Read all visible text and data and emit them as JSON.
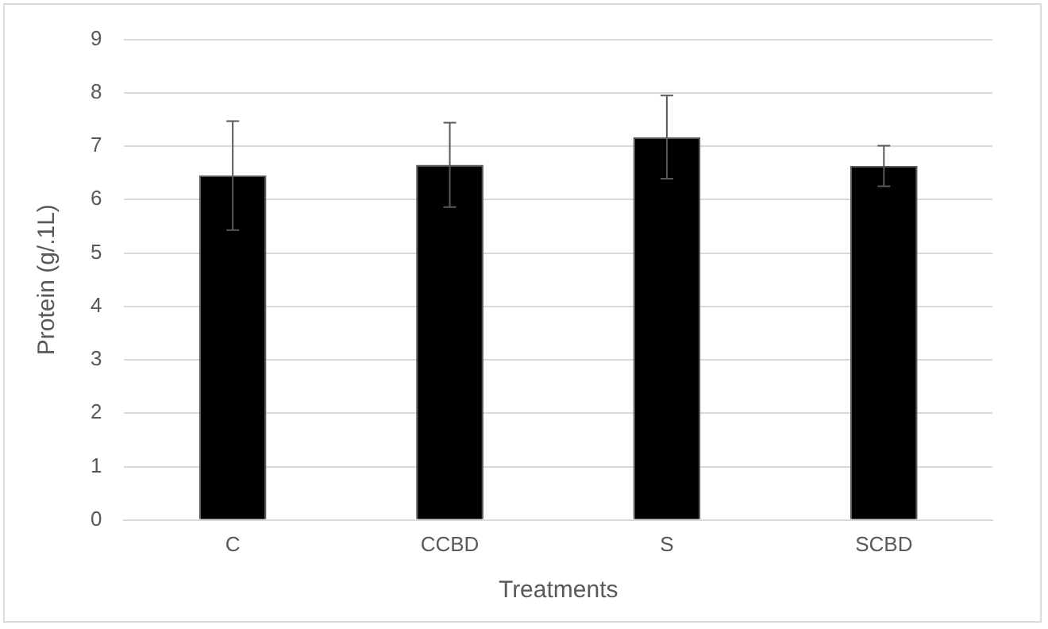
{
  "chart_data": {
    "type": "bar",
    "xlabel": "Treatments",
    "ylabel": "Protein (g/.1L)",
    "categories": [
      "C",
      "CCBD",
      "S",
      "SCBD"
    ],
    "values": [
      6.45,
      6.65,
      7.17,
      6.63
    ],
    "errors": [
      1.02,
      0.79,
      0.78,
      0.38
    ],
    "color": "#000000",
    "ylim": [
      0,
      9
    ],
    "yticks": [
      0,
      1,
      2,
      3,
      4,
      5,
      6,
      7,
      8,
      9
    ],
    "grid": "y",
    "legend": false
  }
}
